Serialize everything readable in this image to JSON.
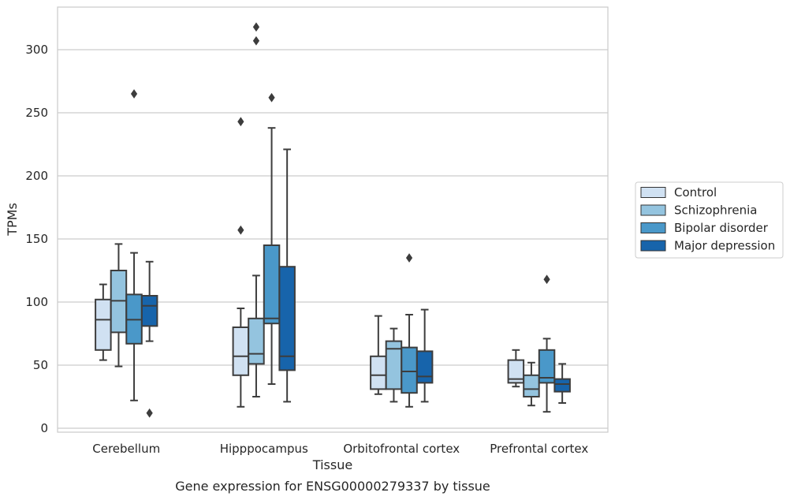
{
  "chart_data": {
    "type": "box",
    "title": "",
    "caption": "Gene expression for ENSG00000279337 by tissue",
    "xlabel": "Tissue",
    "ylabel": "TPMs",
    "ylim": [
      -3,
      334
    ],
    "yticks": [
      0,
      50,
      100,
      150,
      200,
      250,
      300
    ],
    "grid": true,
    "legend_position": "right-outside",
    "categories": [
      "Cerebellum",
      "Hipppocampus",
      "Orbitofrontal cortex",
      "Prefrontal cortex"
    ],
    "series": [
      {
        "name": "Control",
        "color": "#d0e1f2",
        "boxes": [
          {
            "whislo": 54,
            "q1": 62,
            "med": 86,
            "q3": 102,
            "whishi": 114,
            "fliers": []
          },
          {
            "whislo": 17,
            "q1": 42,
            "med": 57,
            "q3": 80,
            "whishi": 95,
            "fliers": [
              157,
              243
            ]
          },
          {
            "whislo": 27,
            "q1": 31,
            "med": 42,
            "q3": 57,
            "whishi": 89,
            "fliers": []
          },
          {
            "whislo": 33,
            "q1": 36,
            "med": 39,
            "q3": 54,
            "whishi": 62,
            "fliers": []
          }
        ]
      },
      {
        "name": "Schizophrenia",
        "color": "#94c4df",
        "boxes": [
          {
            "whislo": 49,
            "q1": 76,
            "med": 101,
            "q3": 125,
            "whishi": 146,
            "fliers": []
          },
          {
            "whislo": 25,
            "q1": 51,
            "med": 59,
            "q3": 87,
            "whishi": 121,
            "fliers": [
              307,
              318
            ]
          },
          {
            "whislo": 21,
            "q1": 31,
            "med": 63,
            "q3": 69,
            "whishi": 79,
            "fliers": []
          },
          {
            "whislo": 18,
            "q1": 25,
            "med": 31,
            "q3": 42,
            "whishi": 52,
            "fliers": []
          }
        ]
      },
      {
        "name": "Bipolar disorder",
        "color": "#4a98c9",
        "boxes": [
          {
            "whislo": 22,
            "q1": 67,
            "med": 86,
            "q3": 106,
            "whishi": 139,
            "fliers": [
              265
            ]
          },
          {
            "whislo": 35,
            "q1": 83,
            "med": 87,
            "q3": 145,
            "whishi": 238,
            "fliers": [
              262
            ]
          },
          {
            "whislo": 17,
            "q1": 28,
            "med": 45,
            "q3": 64,
            "whishi": 90,
            "fliers": [
              135
            ]
          },
          {
            "whislo": 13,
            "q1": 36,
            "med": 40,
            "q3": 62,
            "whishi": 71,
            "fliers": [
              118
            ]
          }
        ]
      },
      {
        "name": "Major depression",
        "color": "#1764ab",
        "boxes": [
          {
            "whislo": 69,
            "q1": 81,
            "med": 97,
            "q3": 105,
            "whishi": 132,
            "fliers": [
              12
            ]
          },
          {
            "whislo": 21,
            "q1": 46,
            "med": 57,
            "q3": 128,
            "whishi": 221,
            "fliers": []
          },
          {
            "whislo": 21,
            "q1": 36,
            "med": 41,
            "q3": 61,
            "whishi": 94,
            "fliers": []
          },
          {
            "whislo": 20,
            "q1": 29,
            "med": 35,
            "q3": 39,
            "whishi": 51,
            "fliers": []
          }
        ]
      }
    ]
  }
}
